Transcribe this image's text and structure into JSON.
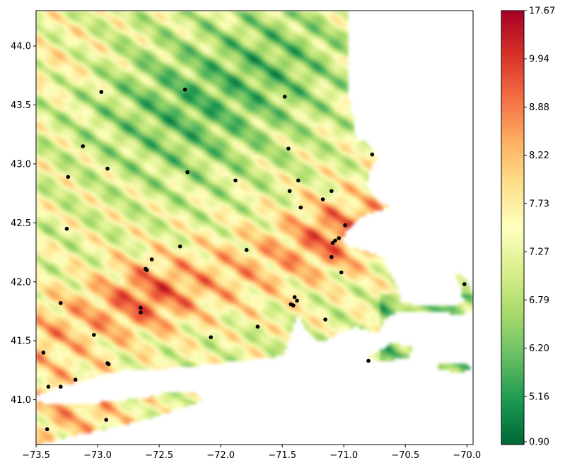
{
  "chart_data": {
    "type": "heatmap",
    "title": "",
    "xlabel": "",
    "ylabel": "",
    "xlim": [
      -73.5,
      -69.95
    ],
    "ylim": [
      40.62,
      44.3
    ],
    "x_ticks": [
      "−73.5",
      "−73.0",
      "−72.5",
      "−72.0",
      "−71.5",
      "−71.0",
      "−70.5",
      "−70.0"
    ],
    "x_tick_values": [
      -73.5,
      -73.0,
      -72.5,
      -72.0,
      -71.5,
      -71.0,
      -70.5,
      -70.0
    ],
    "y_ticks": [
      "41.0",
      "41.5",
      "42.0",
      "42.5",
      "43.0",
      "43.5",
      "44.0"
    ],
    "y_tick_values": [
      41.0,
      41.5,
      42.0,
      42.5,
      43.0,
      43.5,
      44.0
    ],
    "colormap": "RdYlGn_r",
    "colorbar": {
      "tick_labels": [
        "0.90",
        "5.16",
        "6.20",
        "6.79",
        "7.27",
        "7.73",
        "8.22",
        "8.88",
        "9.94",
        "17.67"
      ],
      "colors": [
        "#006837",
        "#1a9850",
        "#66bd63",
        "#a6d96a",
        "#d9ef8b",
        "#ffffbf",
        "#fee08b",
        "#fdae61",
        "#f46d43",
        "#d73027",
        "#a50026"
      ]
    },
    "grid": false,
    "stations": [
      {
        "lon": -72.97,
        "lat": 43.61
      },
      {
        "lon": -72.29,
        "lat": 43.63
      },
      {
        "lon": -71.48,
        "lat": 43.57
      },
      {
        "lon": -73.12,
        "lat": 43.15
      },
      {
        "lon": -72.92,
        "lat": 42.96
      },
      {
        "lon": -72.27,
        "lat": 42.93
      },
      {
        "lon": -73.24,
        "lat": 42.89
      },
      {
        "lon": -71.45,
        "lat": 43.13
      },
      {
        "lon": -70.77,
        "lat": 43.08
      },
      {
        "lon": -71.88,
        "lat": 42.86
      },
      {
        "lon": -71.37,
        "lat": 42.86
      },
      {
        "lon": -71.44,
        "lat": 42.77
      },
      {
        "lon": -71.1,
        "lat": 42.77
      },
      {
        "lon": -71.17,
        "lat": 42.7
      },
      {
        "lon": -71.35,
        "lat": 42.63
      },
      {
        "lon": -73.25,
        "lat": 42.45
      },
      {
        "lon": -70.99,
        "lat": 42.48
      },
      {
        "lon": -71.04,
        "lat": 42.37
      },
      {
        "lon": -71.07,
        "lat": 42.35
      },
      {
        "lon": -71.09,
        "lat": 42.33
      },
      {
        "lon": -72.33,
        "lat": 42.3
      },
      {
        "lon": -71.79,
        "lat": 42.27
      },
      {
        "lon": -72.56,
        "lat": 42.19
      },
      {
        "lon": -71.1,
        "lat": 42.21
      },
      {
        "lon": -72.61,
        "lat": 42.11
      },
      {
        "lon": -72.6,
        "lat": 42.1
      },
      {
        "lon": -71.02,
        "lat": 42.08
      },
      {
        "lon": -70.02,
        "lat": 41.98
      },
      {
        "lon": -71.4,
        "lat": 41.87
      },
      {
        "lon": -71.38,
        "lat": 41.84
      },
      {
        "lon": -73.3,
        "lat": 41.82
      },
      {
        "lon": -71.43,
        "lat": 41.81
      },
      {
        "lon": -71.41,
        "lat": 41.8
      },
      {
        "lon": -72.65,
        "lat": 41.78
      },
      {
        "lon": -72.65,
        "lat": 41.74
      },
      {
        "lon": -71.15,
        "lat": 41.68
      },
      {
        "lon": -71.7,
        "lat": 41.62
      },
      {
        "lon": -73.03,
        "lat": 41.55
      },
      {
        "lon": -72.08,
        "lat": 41.53
      },
      {
        "lon": -73.44,
        "lat": 41.4
      },
      {
        "lon": -72.92,
        "lat": 41.31
      },
      {
        "lon": -72.91,
        "lat": 41.3
      },
      {
        "lon": -70.8,
        "lat": 41.33
      },
      {
        "lon": -73.18,
        "lat": 41.17
      },
      {
        "lon": -73.4,
        "lat": 41.11
      },
      {
        "lon": -73.3,
        "lat": 41.11
      },
      {
        "lon": -72.93,
        "lat": 40.83
      },
      {
        "lon": -73.41,
        "lat": 40.75
      }
    ]
  }
}
